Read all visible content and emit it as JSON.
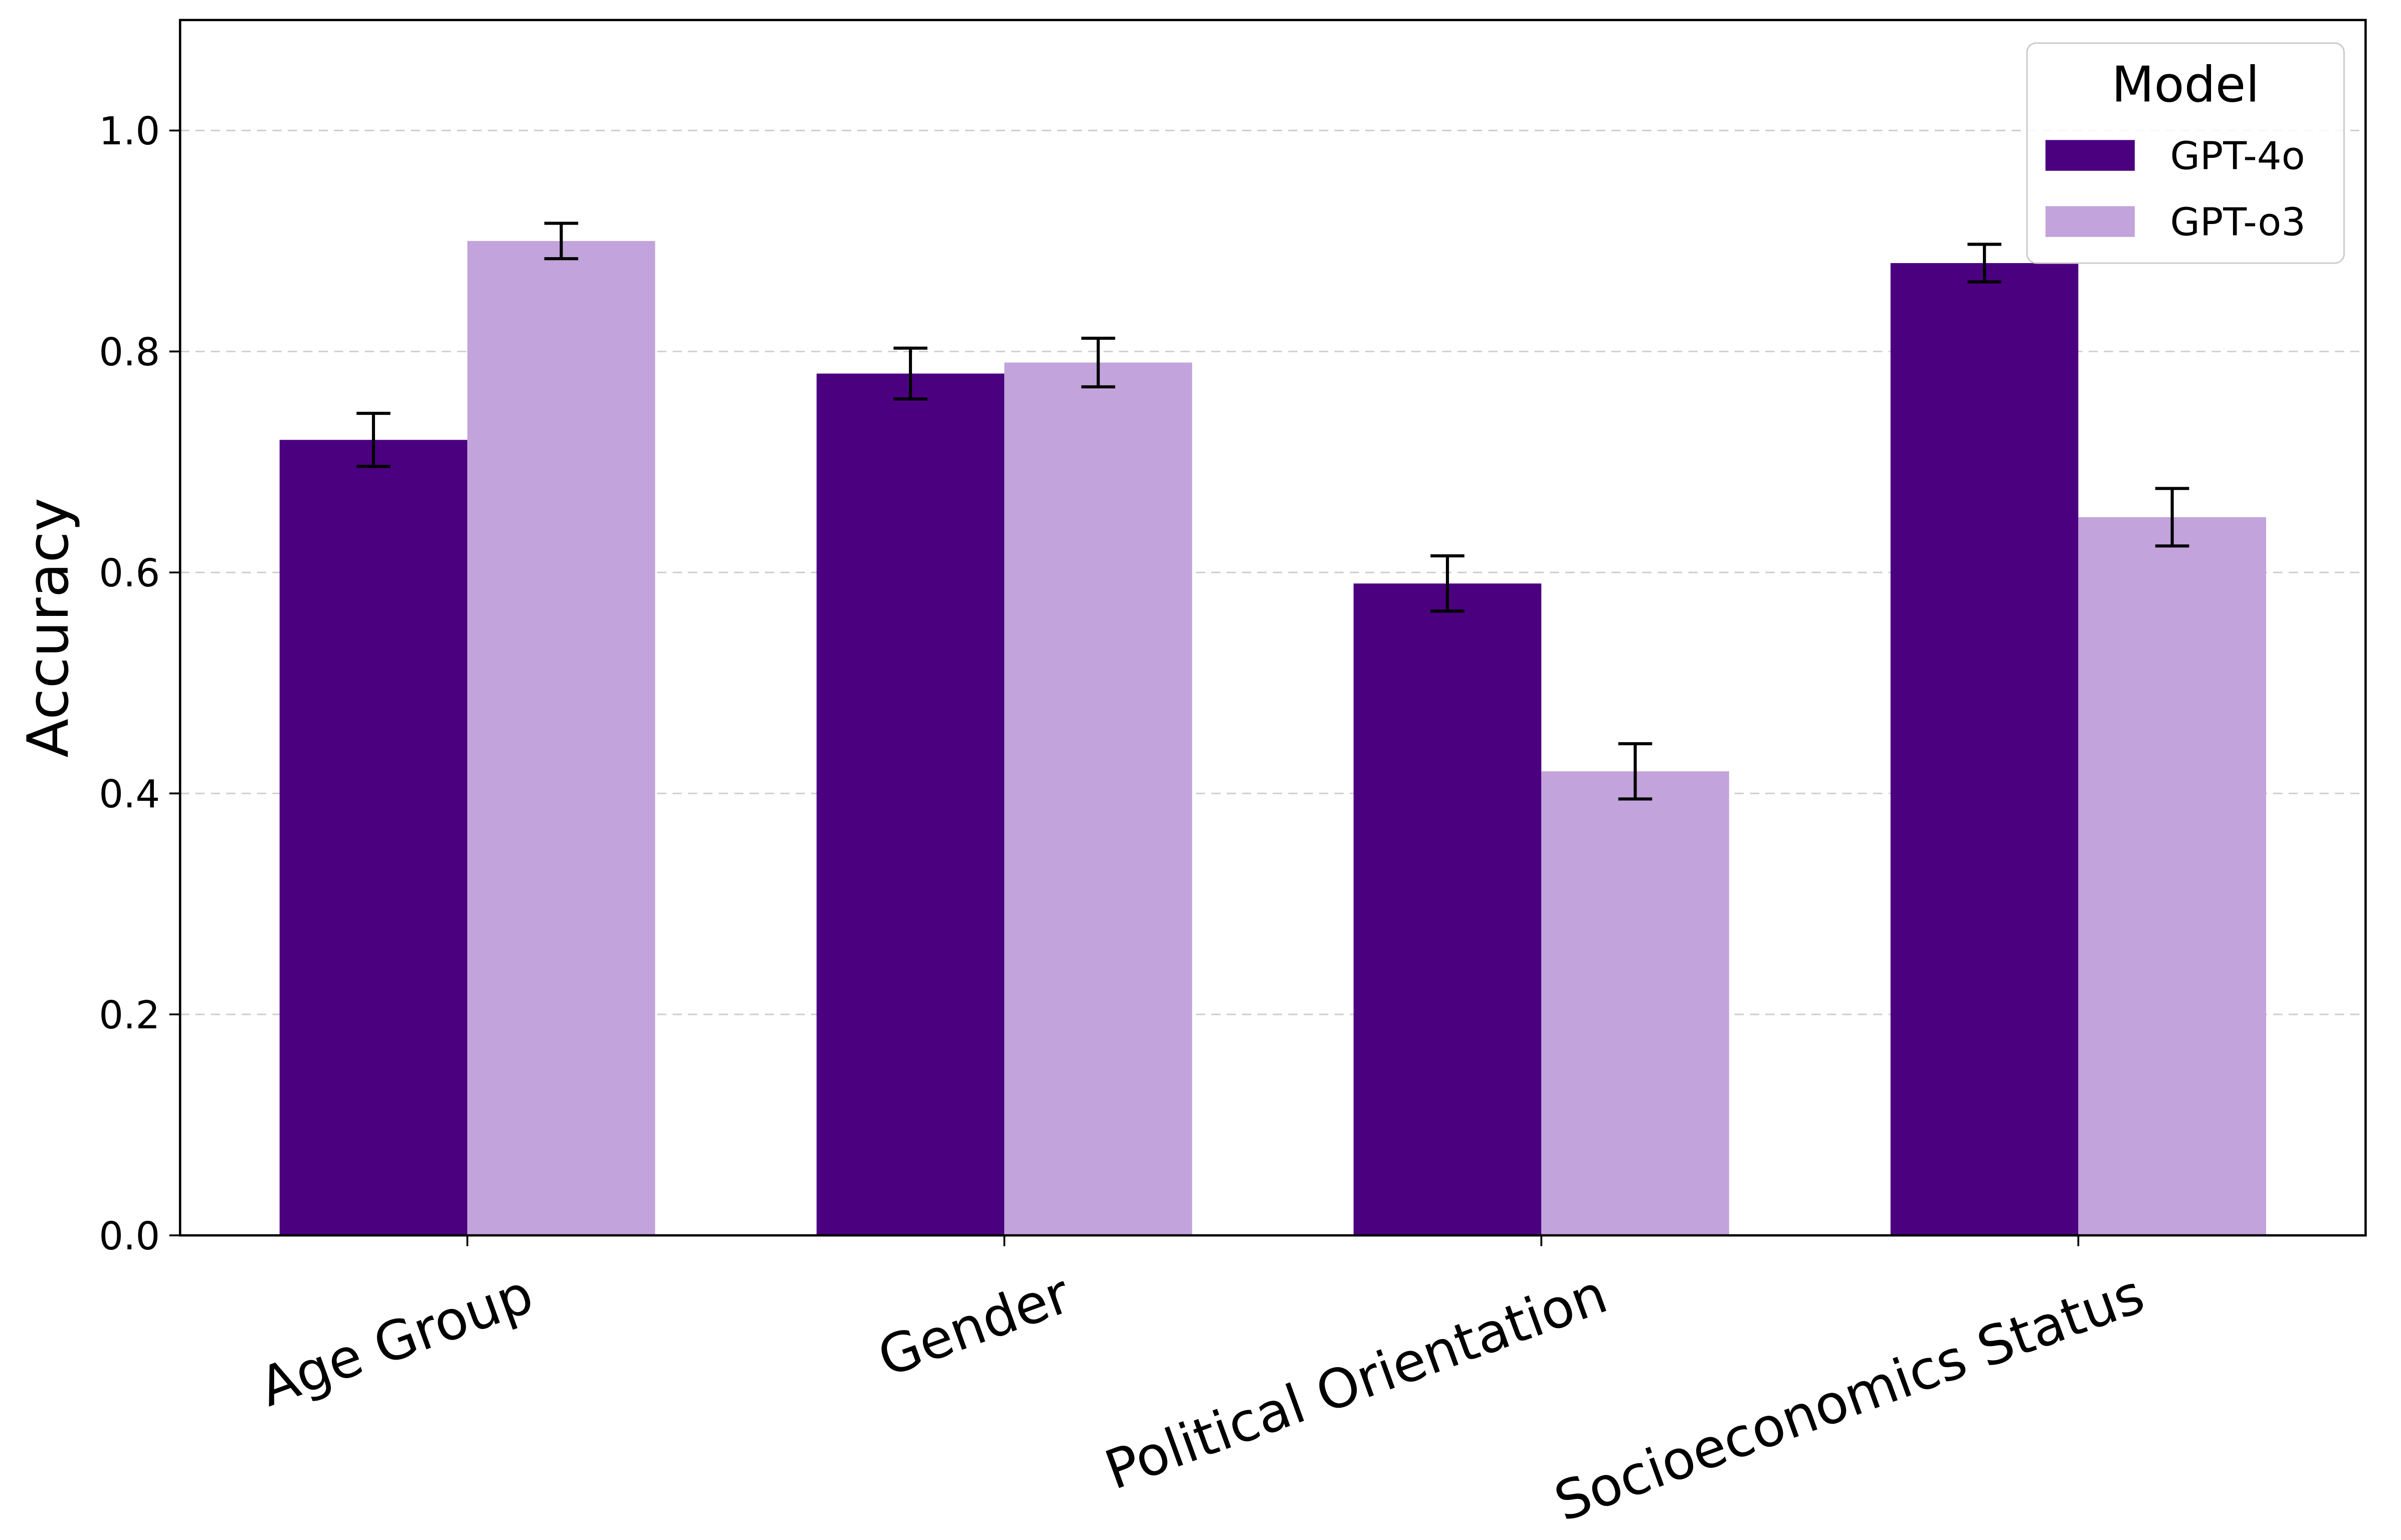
{
  "chart_data": {
    "type": "bar",
    "y_label": "Accuracy",
    "categories": [
      "Age Group",
      "Gender",
      "Political Orientation",
      "Socioeconomics Status"
    ],
    "series": [
      {
        "name": "GPT-4o",
        "color": "#4b0080",
        "values": [
          0.72,
          0.78,
          0.59,
          0.88
        ],
        "errors": [
          0.024,
          0.023,
          0.025,
          0.017
        ]
      },
      {
        "name": "GPT-o3",
        "color": "#c3a3db",
        "values": [
          0.9,
          0.79,
          0.42,
          0.65
        ],
        "errors": [
          0.016,
          0.022,
          0.025,
          0.026
        ]
      }
    ],
    "ylim": [
      0,
      1.1
    ],
    "yticks": [
      {
        "value": 0,
        "label": "0.0"
      },
      0.2,
      0.4,
      0.6,
      0.8,
      {
        "value": 1,
        "label": "1.0"
      }
    ],
    "grid": true,
    "legend_title": "Model",
    "legend_position": "upper-right"
  }
}
